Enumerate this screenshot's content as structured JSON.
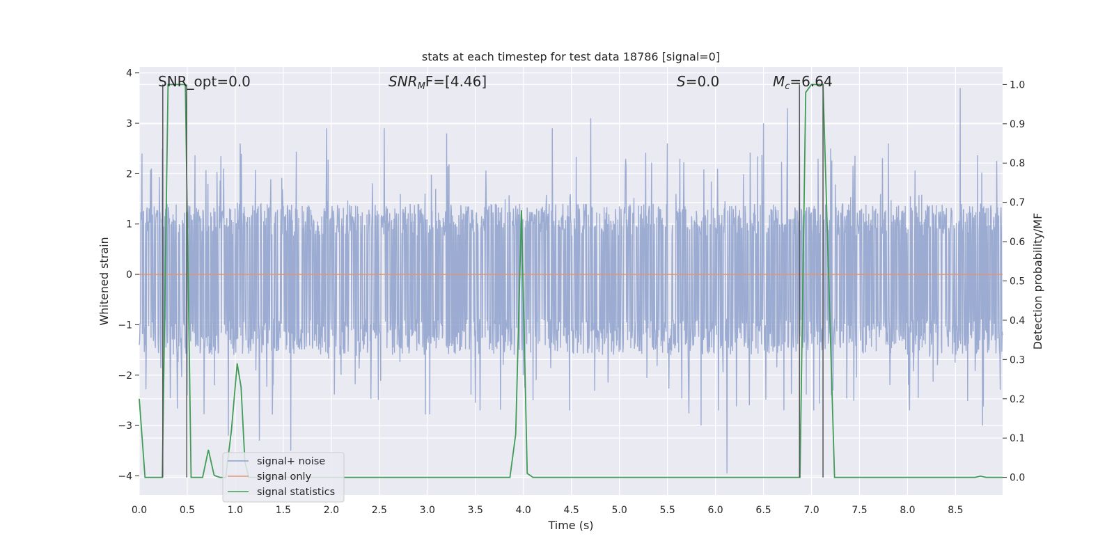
{
  "chart_data": {
    "type": "line",
    "title": "stats at each timestep for test data 18786 [signal=0]",
    "xlabel": "Time (s)",
    "ylabel_left": "Whitened strain",
    "ylabel_right": "Detection probability/MF",
    "xlim": [
      0.0,
      8.99
    ],
    "ylim_left": [
      -4.38,
      4.12
    ],
    "ylim_right": [
      -0.045,
      1.045
    ],
    "x_ticks": [
      0.0,
      0.5,
      1.0,
      1.5,
      2.0,
      2.5,
      3.0,
      3.5,
      4.0,
      4.5,
      5.0,
      5.5,
      6.0,
      6.5,
      7.0,
      7.5,
      8.0,
      8.5
    ],
    "x_tick_labels": [
      "0.0",
      "0.5",
      "1.0",
      "1.5",
      "2.0",
      "2.5",
      "3.0",
      "3.5",
      "4.0",
      "4.5",
      "5.0",
      "5.5",
      "6.0",
      "6.5",
      "7.0",
      "7.5",
      "8.0",
      "8.5"
    ],
    "y_left_ticks": [
      4,
      3,
      2,
      1,
      0,
      -1,
      -2,
      -3,
      -4
    ],
    "y_left_tick_labels": [
      "4",
      "3",
      "2",
      "1",
      "0",
      "−1",
      "−2",
      "−3",
      "−4"
    ],
    "y_right_ticks": [
      1.0,
      0.9,
      0.8,
      0.7,
      0.6,
      0.5,
      0.4,
      0.3,
      0.2,
      0.1,
      0.0
    ],
    "y_right_tick_labels": [
      "1.0",
      "0.9",
      "0.8",
      "0.7",
      "0.6",
      "0.5",
      "0.4",
      "0.3",
      "0.2",
      "0.1",
      "0.0"
    ],
    "grid": true,
    "legend_placement": "lower-left",
    "annotations": {
      "snr_opt": "SNR_opt=0.0",
      "snr_mf_main": "SNR",
      "snr_mf_sub": "M",
      "snr_mf_rest": "F=[4.46]",
      "s_sym": "S",
      "s_rest": "=0.0",
      "mc_main": "M",
      "mc_sub": "c",
      "mc_rest": "=6.64"
    },
    "series": [
      {
        "name": "signal+ noise",
        "color": "#8da0cb",
        "axis": "left",
        "style": "dense noise band",
        "typical_range": [
          -1.6,
          1.4
        ],
        "peaks": [
          [
            0.03,
            2.4
          ],
          [
            0.24,
            2.5
          ],
          [
            0.5,
            -2.4
          ],
          [
            0.93,
            -3.2
          ],
          [
            1.05,
            2.6
          ],
          [
            1.25,
            -3.3
          ],
          [
            1.58,
            -3.5
          ],
          [
            1.95,
            2.9
          ],
          [
            2.55,
            2.9
          ],
          [
            3.2,
            2.8
          ],
          [
            3.55,
            -2.7
          ],
          [
            4.1,
            -2.5
          ],
          [
            4.3,
            2.9
          ],
          [
            4.48,
            -2.7
          ],
          [
            4.7,
            3.1
          ],
          [
            5.5,
            2.6
          ],
          [
            5.85,
            -3.0
          ],
          [
            6.12,
            -3.95
          ],
          [
            6.5,
            3.0
          ],
          [
            6.75,
            3.3
          ],
          [
            7.2,
            2.5
          ],
          [
            7.8,
            2.6
          ],
          [
            8.02,
            -2.7
          ],
          [
            8.55,
            3.7
          ],
          [
            8.78,
            -3.0
          ]
        ]
      },
      {
        "name": "signal only",
        "color": "#e4966f",
        "axis": "left",
        "x": [
          0.0,
          8.99
        ],
        "y": [
          0.0,
          0.0
        ]
      },
      {
        "name": "signal statistics",
        "color": "#3f9b55",
        "axis": "right",
        "x": [
          0.0,
          0.06,
          0.12,
          0.18,
          0.24,
          0.3,
          0.36,
          0.42,
          0.48,
          0.54,
          0.6,
          0.66,
          0.72,
          0.78,
          0.84,
          0.9,
          0.96,
          1.02,
          1.06,
          1.1,
          1.14,
          1.2,
          1.3,
          1.5,
          2.0,
          2.5,
          3.0,
          3.5,
          3.86,
          3.92,
          3.98,
          4.04,
          4.1,
          4.2,
          5.0,
          6.0,
          6.86,
          6.88,
          6.94,
          7.0,
          7.06,
          7.12,
          7.18,
          7.24,
          7.3,
          8.0,
          8.7,
          8.76,
          8.82,
          8.9,
          8.99
        ],
        "y": [
          0.2,
          0.0,
          0.0,
          0.0,
          0.0,
          1.0,
          1.0,
          1.0,
          1.0,
          0.0,
          0.0,
          0.0,
          0.07,
          0.005,
          0.0,
          0.0,
          0.12,
          0.29,
          0.23,
          0.04,
          0.0,
          0.0,
          0.0,
          0.0,
          0.0,
          0.0,
          0.0,
          0.0,
          0.0,
          0.11,
          0.68,
          0.01,
          0.0,
          0.0,
          0.0,
          0.0,
          0.0,
          0.0,
          0.98,
          1.0,
          1.0,
          1.0,
          0.5,
          0.0,
          0.0,
          0.0,
          0.0,
          0.003,
          0.0,
          0.0,
          0.0
        ]
      }
    ],
    "markers": {
      "color": "#555555",
      "x": [
        0.245,
        0.495,
        6.875,
        7.12
      ]
    }
  }
}
